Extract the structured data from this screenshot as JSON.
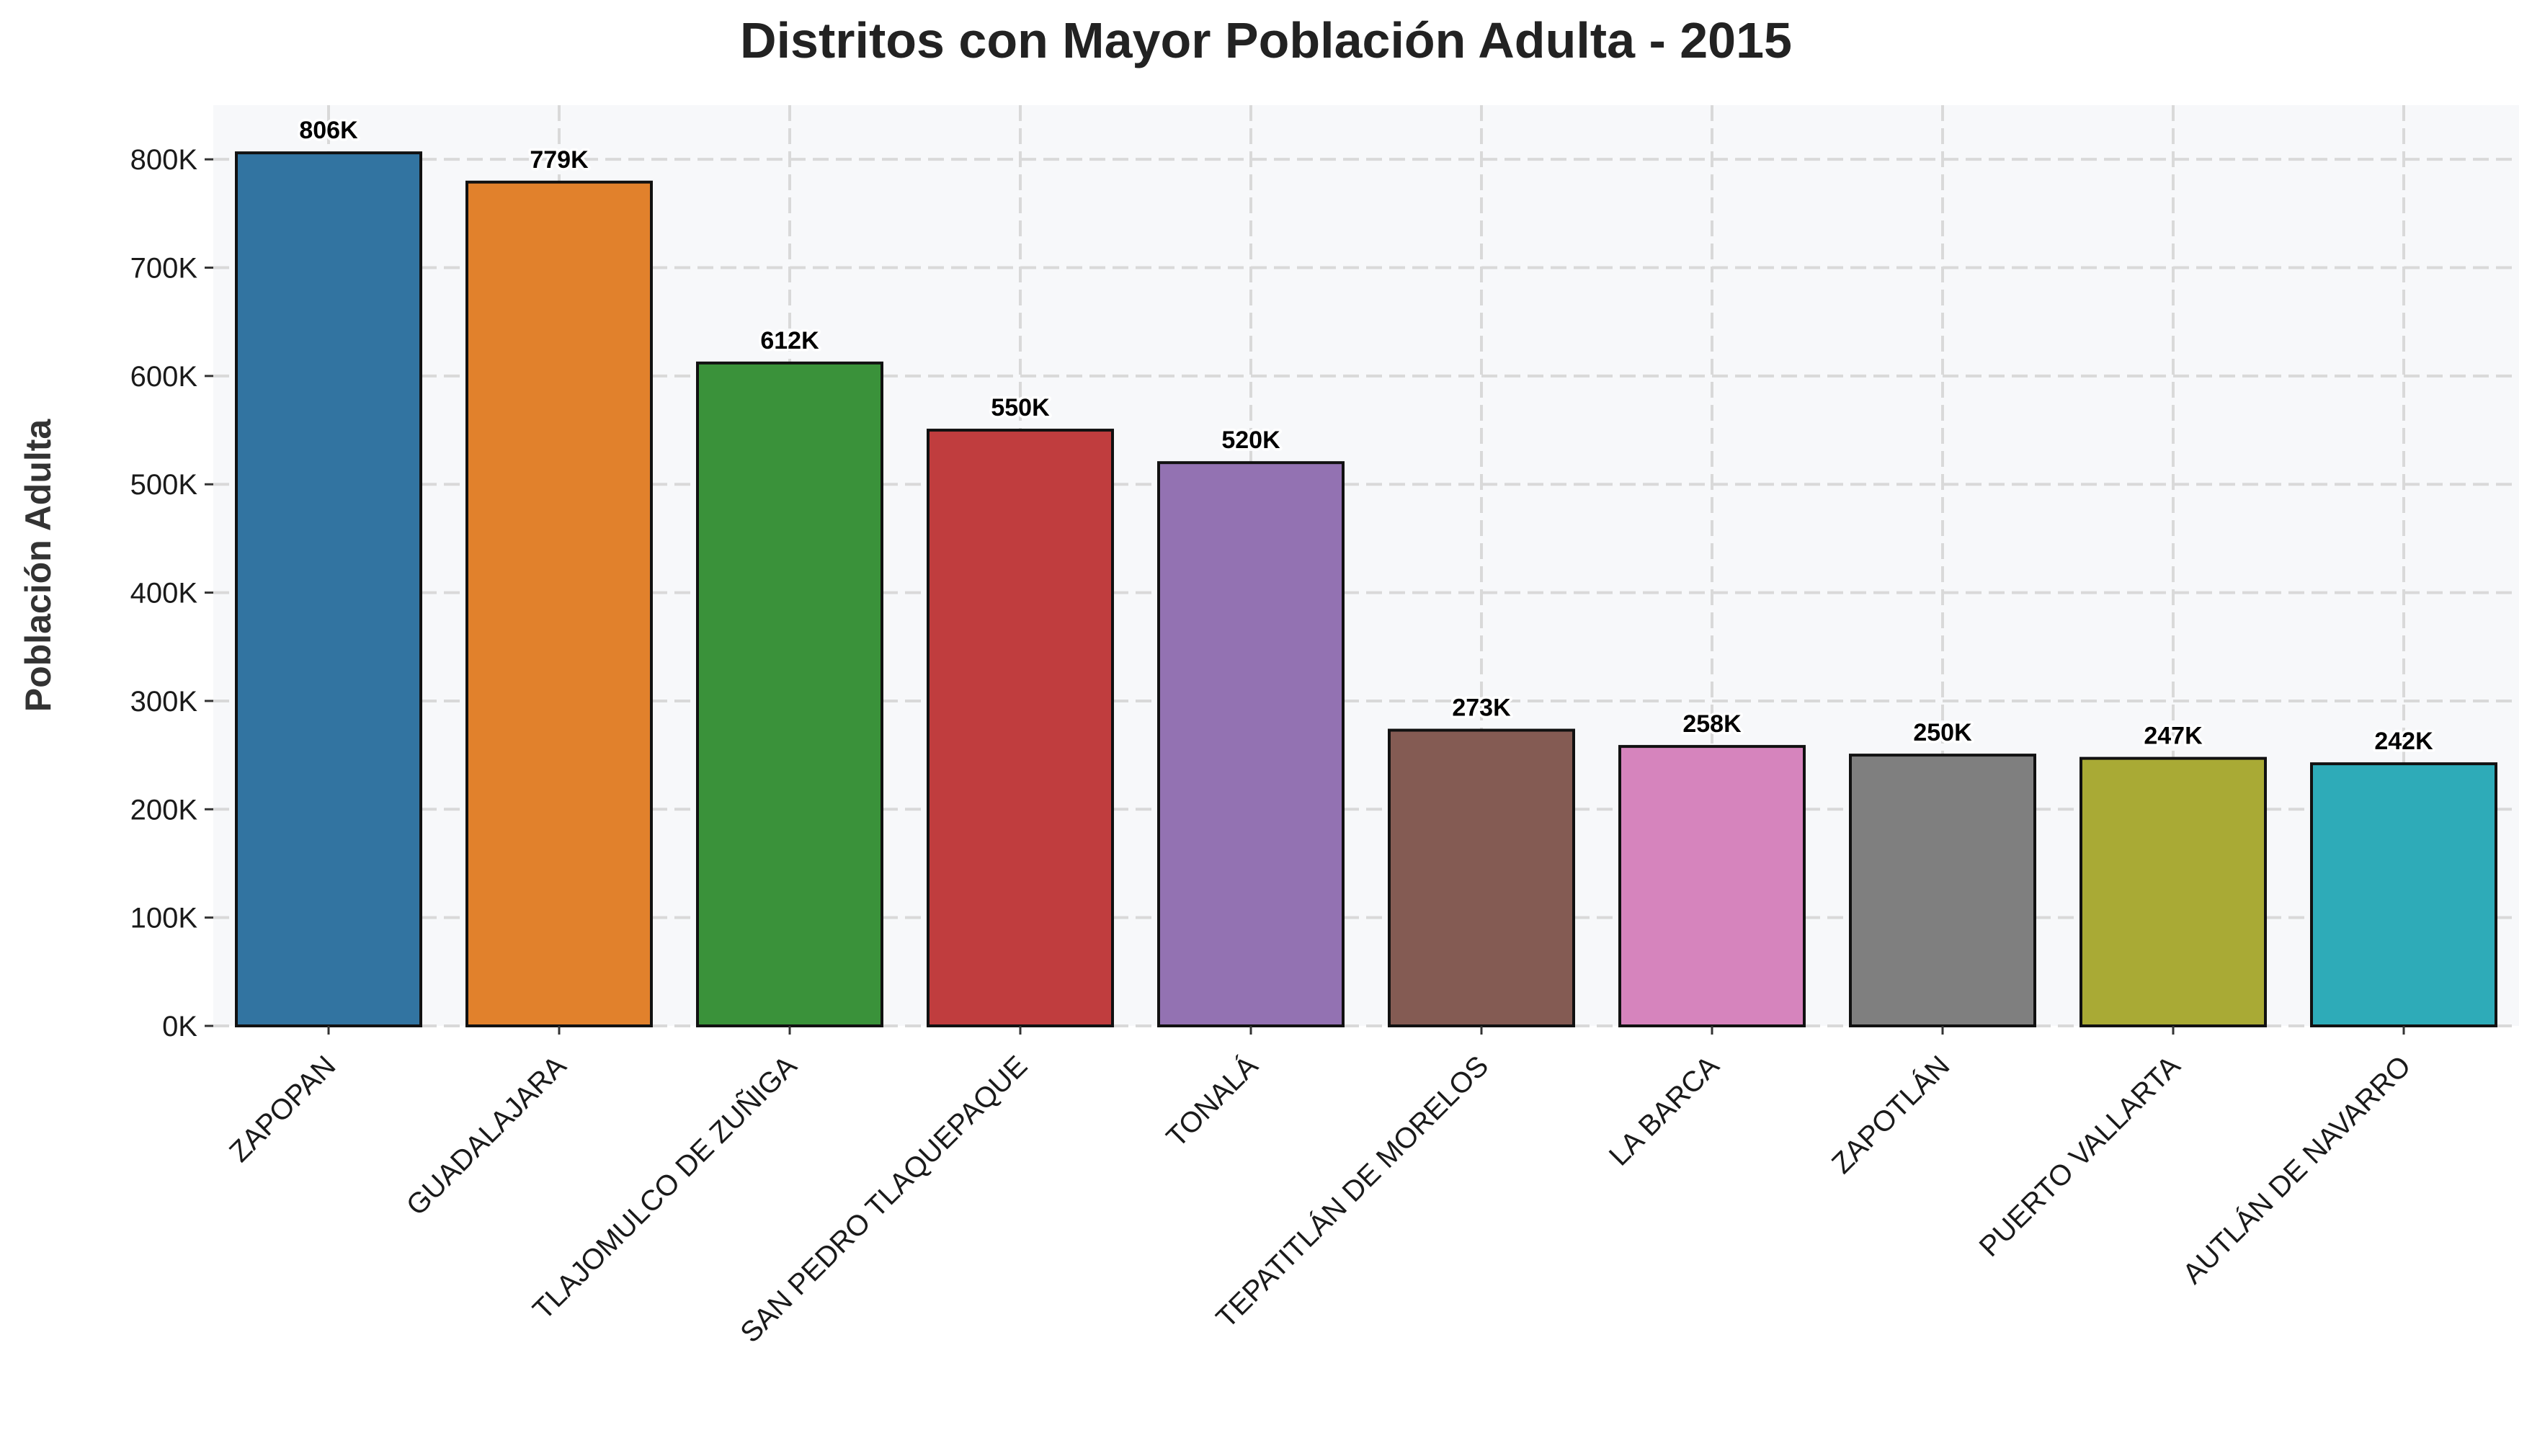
{
  "chart_data": {
    "type": "bar",
    "title": "Distritos con Mayor Población Adulta - 2015",
    "xlabel": "",
    "ylabel": "Población Adulta",
    "ylim": [
      0,
      850000
    ],
    "grid": true,
    "y_ticks": [
      0,
      100000,
      200000,
      300000,
      400000,
      500000,
      600000,
      700000,
      800000
    ],
    "y_tick_labels": [
      "0K",
      "100K",
      "200K",
      "300K",
      "400K",
      "500K",
      "600K",
      "700K",
      "800K"
    ],
    "categories": [
      "ZAPOPAN",
      "GUADALAJARA",
      "TLAJOMULCO DE ZUÑIGA",
      "SAN PEDRO TLAQUEPAQUE",
      "TONALÁ",
      "TEPATITLÁN DE MORELOS",
      "LA BARCA",
      "ZAPOTLÁN",
      "PUERTO VALLARTA",
      "AUTLÁN DE NAVARRO"
    ],
    "values": [
      806000,
      779000,
      612000,
      550000,
      520000,
      273000,
      258000,
      250000,
      247000,
      242000
    ],
    "data_labels": [
      "806K",
      "779K",
      "612K",
      "550K",
      "520K",
      "273K",
      "258K",
      "250K",
      "247K",
      "242K"
    ],
    "colors": [
      "#3274a1",
      "#e1812c",
      "#3a923a",
      "#c03d3e",
      "#9372b2",
      "#845b53",
      "#d684bd",
      "#7f7f7f",
      "#a9aa35",
      "#2eabb8"
    ],
    "plot_background": "#f7f8fa"
  }
}
